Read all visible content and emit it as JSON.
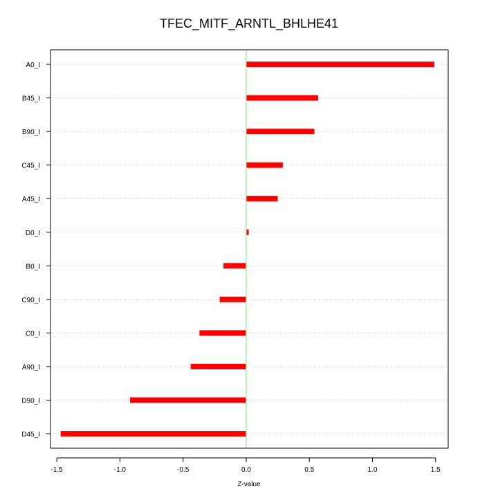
{
  "chart_data": {
    "type": "bar",
    "orientation": "horizontal",
    "title": "TFEC_MITF_ARNTL_BHLHE41",
    "xlabel": "Z-value",
    "ylabel": "",
    "xlim": [
      -1.55,
      1.6
    ],
    "xticks": [
      -1.5,
      -1.0,
      -0.5,
      0.0,
      0.5,
      1.0,
      1.5
    ],
    "xtick_labels": [
      "-1.5",
      "-1.0",
      "-0.5",
      "0.0",
      "0.5",
      "1.0",
      "1.5"
    ],
    "categories": [
      "A0_I",
      "B45_I",
      "B90_I",
      "C45_I",
      "A45_I",
      "D0_I",
      "B0_I",
      "C90_I",
      "C0_I",
      "A90_I",
      "D90_I",
      "D45_I"
    ],
    "values": [
      1.49,
      0.57,
      0.54,
      0.29,
      0.25,
      0.02,
      -0.18,
      -0.21,
      -0.37,
      -0.44,
      -0.92,
      -1.47
    ],
    "bar_color": "#ff0000",
    "reference_line": {
      "x": 0.0,
      "color": "#90ee90"
    },
    "grid": "horizontal-dotted",
    "legend": "none"
  }
}
